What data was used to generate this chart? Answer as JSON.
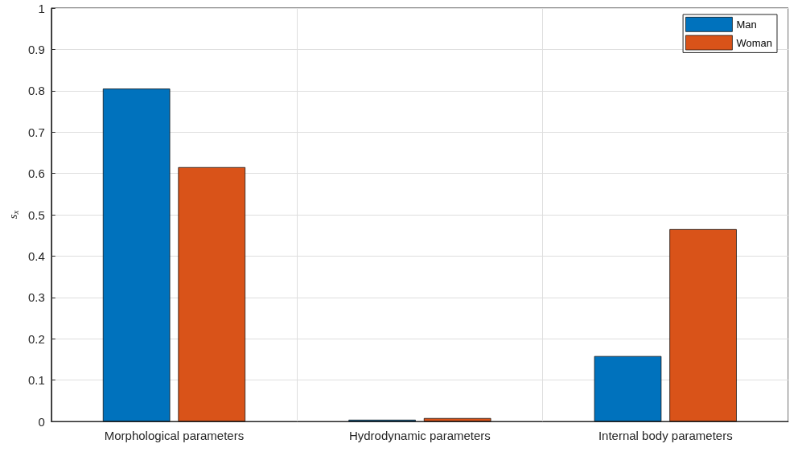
{
  "chart_data": {
    "type": "bar",
    "ylabel": "s$_{x}$",
    "categories": [
      "Morphological parameters",
      "Hydrodynamic parameters",
      "Internal body parameters"
    ],
    "series": [
      {
        "name": "Man",
        "color": "#0072bd",
        "values": [
          0.805,
          0.004,
          0.158
        ]
      },
      {
        "name": "Woman",
        "color": "#d95319",
        "values": [
          0.615,
          0.008,
          0.465
        ]
      }
    ],
    "ylim": [
      0,
      1
    ],
    "yticks": [
      0,
      0.1,
      0.2,
      0.3,
      0.4,
      0.5,
      0.6,
      0.7,
      0.8,
      0.9,
      1
    ],
    "grid": true,
    "legend": "top right"
  }
}
